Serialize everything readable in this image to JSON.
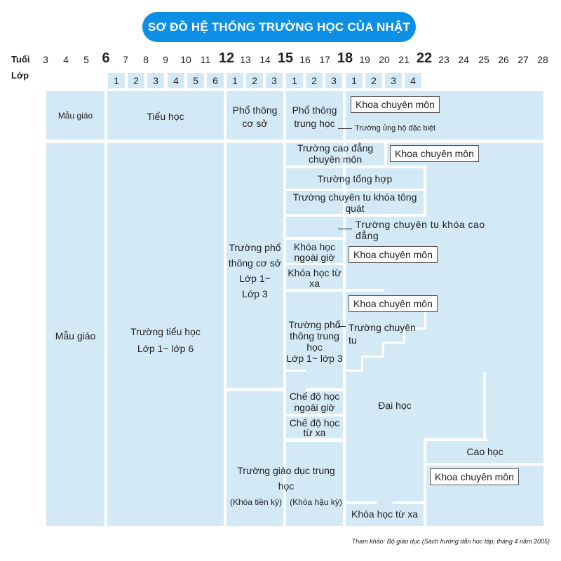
{
  "title": "SƠ ĐỒ HỆ THỐNG TRƯỜNG HỌC CỦA NHẬT",
  "row_labels": {
    "age": "Tuổi",
    "grade": "Lớp"
  },
  "ages": [
    "3",
    "4",
    "5",
    "6",
    "7",
    "8",
    "9",
    "10",
    "11",
    "12",
    "13",
    "14",
    "15",
    "16",
    "17",
    "18",
    "19",
    "20",
    "21",
    "22",
    "23",
    "24",
    "25",
    "26",
    "27",
    "28"
  ],
  "grades": [
    "1",
    "2",
    "3",
    "4",
    "5",
    "6",
    "1",
    "2",
    "3",
    "1",
    "2",
    "3",
    "1",
    "2",
    "3",
    "4"
  ],
  "labels": {
    "mau_giao_top": "Mẫu giáo",
    "tieu_hoc_top": "Tiểu học",
    "pho_thong_co_so": "Phổ thông\ncơ sở",
    "pho_thong_trung_hoc": "Phổ thông\ntrung học",
    "truong_ung_ho": "Trường ủng hộ đặc biệt",
    "truong_cao_dang": "Trường cao đẳng\nchuyên môn",
    "truong_tong_hop": "Trường tổng hợp",
    "truong_chuyen_tu_tong_quat": "Trường chuyên tu khóa tông\nquát",
    "truong_chuyen_tu_cao_dang": "Trường chuyên tu khóa cao\nđẳng",
    "khoa_hoc_ngoai_gio": "Khóa học\nngoài giờ",
    "khoa_hoc_tu_xa_mid": "Khóa học từ\nxa",
    "truong_pho_thong_co_so_lop": "Trường phổ\nthông cơ sở\nLớp 1~\nLớp 3",
    "truong_pho_thong_trung_hoc_lop": "Trường phổ\nthông trung\nhọc\nLớp 1~ lớp 3",
    "truong_chuyen_tu": "Trường chuyên\ntu",
    "mau_giao_main": "Mẫu giáo",
    "truong_tieu_hoc": "Trường tiểu học\nLớp 1~ lớp 6",
    "che_do_ngoai_gio": "Chế độ học\nngoài giờ",
    "che_do_tu_xa": "Chế độ học\ntừ xa",
    "truong_giao_duc_trung_hoc": "Trường giáo dục trung\nhọc",
    "khoa_tien_ky": "(Khóa tiền kỳ)",
    "khoa_hau_ky": "(Khóa hậu kỳ)",
    "dai_hoc": "Đại học",
    "cao_hoc": "Cao học",
    "khoa_hoc_tu_xa_bottom": "Khóa học từ xa"
  },
  "khoa_chuyen_mon": [
    "Khoa chuyên môn",
    "Khoa chuyên môn",
    "Khoa chuyên môn",
    "Khoa chuyên môn",
    "Khoa chuyên môn"
  ],
  "source": "Tham khảo: Bộ giáo dục (Sách hướng dẫn học tập, tháng 4 năm 2005)",
  "colors": {
    "title_bg": "#0c8fe4",
    "area": "#d4e9f6",
    "divider": "#ffffff"
  }
}
